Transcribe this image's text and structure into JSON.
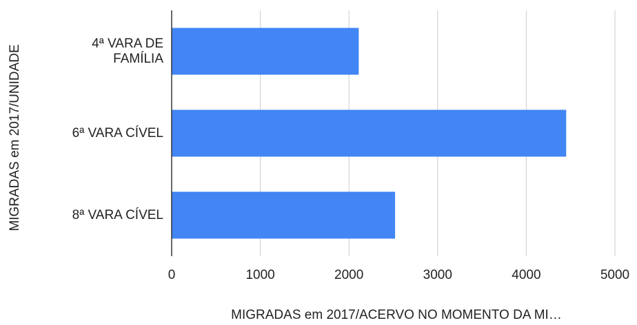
{
  "chart_data": {
    "type": "bar",
    "orientation": "horizontal",
    "categories": [
      "4ª VARA DE FAMÍLIA",
      "6ª VARA CÍVEL",
      "8ª VARA CÍVEL"
    ],
    "values": [
      2110,
      4450,
      2520
    ],
    "color": "#4285f4",
    "xlabel": "MIGRADAS em 2017/ACERVO NO MOMENTO DA MI…",
    "ylabel": "MIGRADAS em 2017/UNIDADE",
    "xlim": [
      0,
      5000
    ],
    "xticks": [
      0,
      1000,
      2000,
      3000,
      4000,
      5000
    ],
    "grid": true
  }
}
